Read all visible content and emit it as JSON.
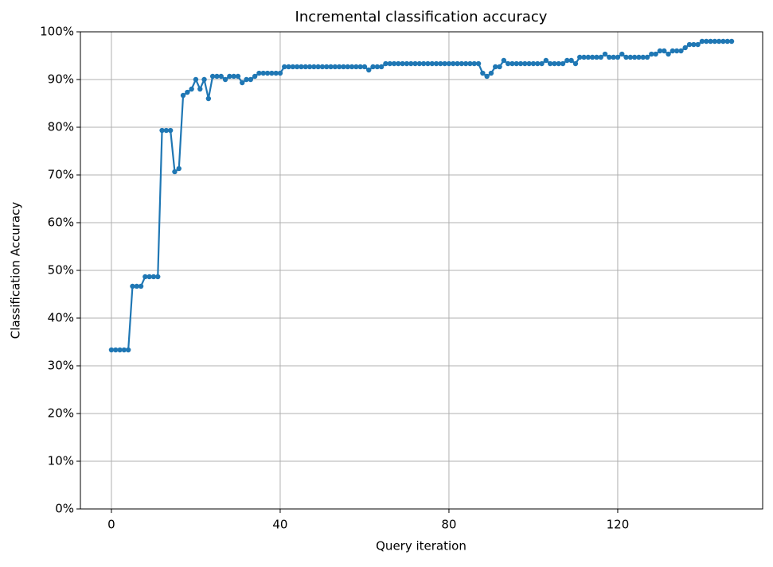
{
  "chart_data": {
    "type": "line",
    "title": "Incremental classification accuracy",
    "x_label": "Query iteration",
    "y_label": "Classification Accuracy",
    "x": [
      0,
      1,
      2,
      3,
      4,
      5,
      6,
      7,
      8,
      9,
      10,
      11,
      12,
      13,
      14,
      15,
      16,
      17,
      18,
      19,
      20,
      21,
      22,
      23,
      24,
      25,
      26,
      27,
      28,
      29,
      30,
      31,
      32,
      33,
      34,
      35,
      36,
      37,
      38,
      39,
      40,
      41,
      42,
      43,
      44,
      45,
      46,
      47,
      48,
      49,
      50,
      51,
      52,
      53,
      54,
      55,
      56,
      57,
      58,
      59,
      60,
      61,
      62,
      63,
      64,
      65,
      66,
      67,
      68,
      69,
      70,
      71,
      72,
      73,
      74,
      75,
      76,
      77,
      78,
      79,
      80,
      81,
      82,
      83,
      84,
      85,
      86,
      87,
      88,
      89,
      90,
      91,
      92,
      93,
      94,
      95,
      96,
      97,
      98,
      99,
      100,
      101,
      102,
      103,
      104,
      105,
      106,
      107,
      108,
      109,
      110,
      111,
      112,
      113,
      114,
      115,
      116,
      117,
      118,
      119,
      120,
      121,
      122,
      123,
      124,
      125,
      126,
      127,
      128,
      129,
      130,
      131,
      132,
      133,
      134,
      135,
      136,
      137,
      138,
      139,
      140,
      141,
      142,
      143,
      144,
      145,
      146,
      147
    ],
    "series": [
      {
        "color": "#1f77b4",
        "values": [
          33.33,
          33.33,
          33.33,
          33.33,
          33.33,
          46.67,
          46.67,
          46.67,
          48.67,
          48.67,
          48.67,
          48.67,
          79.33,
          79.33,
          79.33,
          70.67,
          71.33,
          86.67,
          87.33,
          88,
          90,
          88,
          90,
          86,
          90.67,
          90.67,
          90.67,
          90,
          90.67,
          90.67,
          90.67,
          89.33,
          90,
          90,
          90.67,
          91.33,
          91.33,
          91.33,
          91.33,
          91.33,
          91.33,
          92.67,
          92.67,
          92.67,
          92.67,
          92.67,
          92.67,
          92.67,
          92.67,
          92.67,
          92.67,
          92.67,
          92.67,
          92.67,
          92.67,
          92.67,
          92.67,
          92.67,
          92.67,
          92.67,
          92.67,
          92,
          92.67,
          92.67,
          92.67,
          93.33,
          93.33,
          93.33,
          93.33,
          93.33,
          93.33,
          93.33,
          93.33,
          93.33,
          93.33,
          93.33,
          93.33,
          93.33,
          93.33,
          93.33,
          93.33,
          93.33,
          93.33,
          93.33,
          93.33,
          93.33,
          93.33,
          93.33,
          91.33,
          90.67,
          91.33,
          92.67,
          92.67,
          94,
          93.33,
          93.33,
          93.33,
          93.33,
          93.33,
          93.33,
          93.33,
          93.33,
          93.33,
          94,
          93.33,
          93.33,
          93.33,
          93.33,
          94,
          94,
          93.33,
          94.67,
          94.67,
          94.67,
          94.67,
          94.67,
          94.67,
          95.33,
          94.67,
          94.67,
          94.67,
          95.33,
          94.67,
          94.67,
          94.67,
          94.67,
          94.67,
          94.67,
          95.33,
          95.33,
          96,
          96,
          95.33,
          96,
          96,
          96,
          96.67,
          97.33,
          97.33,
          97.33,
          98,
          98,
          98,
          98,
          98,
          98,
          98,
          98
        ]
      }
    ],
    "xlim": [
      -7.35,
      154.35
    ],
    "ylim": [
      0,
      100
    ],
    "xticks": [
      0,
      40,
      80,
      120
    ],
    "yticks": [
      {
        "value": 0,
        "label": "0%"
      },
      {
        "value": 10,
        "label": "10%"
      },
      {
        "value": 20,
        "label": "20%"
      },
      {
        "value": 30,
        "label": "30%"
      },
      {
        "value": 40,
        "label": "40%"
      },
      {
        "value": 50,
        "label": "50%"
      },
      {
        "value": 60,
        "label": "60%"
      },
      {
        "value": 70,
        "label": "70%"
      },
      {
        "value": 80,
        "label": "80%"
      },
      {
        "value": 90,
        "label": "90%"
      },
      {
        "value": 100,
        "label": "100%"
      }
    ],
    "grid": true
  }
}
